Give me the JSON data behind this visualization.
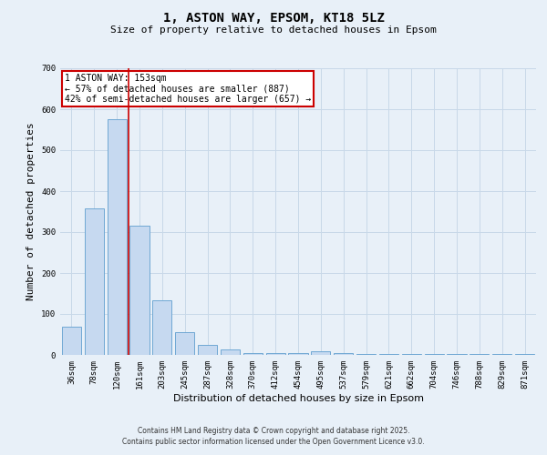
{
  "title1": "1, ASTON WAY, EPSOM, KT18 5LZ",
  "title2": "Size of property relative to detached houses in Epsom",
  "xlabel": "Distribution of detached houses by size in Epsom",
  "ylabel": "Number of detached properties",
  "bar_labels": [
    "36sqm",
    "78sqm",
    "120sqm",
    "161sqm",
    "203sqm",
    "245sqm",
    "287sqm",
    "328sqm",
    "370sqm",
    "412sqm",
    "454sqm",
    "495sqm",
    "537sqm",
    "579sqm",
    "621sqm",
    "662sqm",
    "704sqm",
    "746sqm",
    "788sqm",
    "829sqm",
    "871sqm"
  ],
  "bar_values": [
    68,
    358,
    575,
    315,
    133,
    55,
    25,
    13,
    5,
    5,
    5,
    10,
    5,
    3,
    2,
    2,
    2,
    2,
    2,
    2,
    2
  ],
  "bar_color": "#c6d9f0",
  "bar_edge_color": "#6fa8d4",
  "grid_color": "#c8d8e8",
  "bg_color": "#e8f0f8",
  "vline_color": "#cc0000",
  "annotation_title": "1 ASTON WAY: 153sqm",
  "annotation_line1": "← 57% of detached houses are smaller (887)",
  "annotation_line2": "42% of semi-detached houses are larger (657) →",
  "annotation_box_color": "#ffffff",
  "annotation_box_edge": "#cc0000",
  "footer1": "Contains HM Land Registry data © Crown copyright and database right 2025.",
  "footer2": "Contains public sector information licensed under the Open Government Licence v3.0.",
  "ylim": [
    0,
    700
  ],
  "yticks": [
    0,
    100,
    200,
    300,
    400,
    500,
    600,
    700
  ],
  "title1_fontsize": 10,
  "title2_fontsize": 8,
  "tick_fontsize": 6.5,
  "label_fontsize": 8,
  "footer_fontsize": 5.5
}
